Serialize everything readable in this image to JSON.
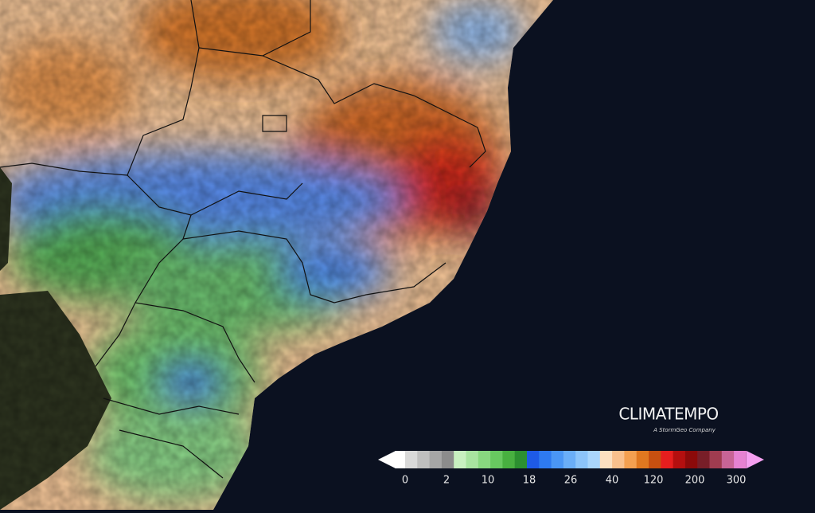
{
  "brand": {
    "name": "CLIMATEMPO",
    "tagline": "A StormGeo Company"
  },
  "legend": {
    "labels": [
      "0",
      "2",
      "10",
      "18",
      "26",
      "40",
      "120",
      "200",
      "300"
    ]
  }
}
